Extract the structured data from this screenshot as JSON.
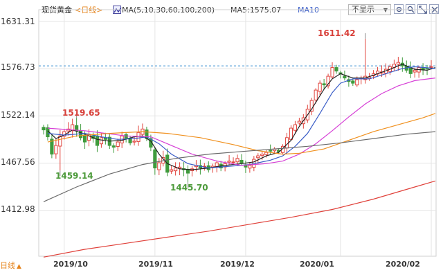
{
  "legend": {
    "title": "现货黄金",
    "period": "<日线>",
    "ma_list": "MA(5,10,30,60,100,200)",
    "ma5": "MA5:1575.07",
    "ma10": "MA10"
  },
  "toolbar": {
    "hide_label": "不显示",
    "caret": "▼"
  },
  "footer": {
    "period": "日线",
    "caret": "▲"
  },
  "colors": {
    "up": "#e0413a",
    "down": "#3e9b3c",
    "ma5": "#222222",
    "ma10": "#3a5dc7",
    "ma30": "#d63fd6",
    "ma60": "#f0901e",
    "ma100": "#6a6a6a",
    "ma200": "#e0413a",
    "dashed": "#3a8fd0",
    "grid": "#e4e4e4"
  },
  "chart_data": {
    "type": "candlestick",
    "y_ticks": [
      1631.31,
      1576.73,
      1522.14,
      1467.56,
      1412.98
    ],
    "ylim": [
      1358.4,
      1631.31
    ],
    "x_ticks": [
      "2019/10",
      "2019/11",
      "2019/12",
      "2020/01",
      "2020/02"
    ],
    "x_tick_index": [
      5,
      27,
      49,
      72,
      94
    ],
    "reference_price": 1580,
    "annotations": [
      {
        "label": "1519.65",
        "value": 1519.65,
        "index": 8,
        "kind": "high"
      },
      {
        "label": "1459.14",
        "value": 1459.14,
        "index": 4,
        "kind": "low"
      },
      {
        "label": "1445.70",
        "value": 1445.7,
        "index": 35,
        "kind": "low"
      },
      {
        "label": "1611.42",
        "value": 1611.42,
        "index": 78,
        "kind": "high"
      }
    ],
    "closes": [
      1506,
      1498,
      1478,
      1488,
      1499,
      1504,
      1507,
      1512,
      1505,
      1497,
      1492,
      1501,
      1496,
      1488,
      1497,
      1495,
      1488,
      1486,
      1492,
      1499,
      1496,
      1491,
      1493,
      1503,
      1507,
      1496,
      1486,
      1462,
      1468,
      1474,
      1457,
      1460,
      1462,
      1463,
      1460,
      1456,
      1461,
      1465,
      1462,
      1464,
      1460,
      1464,
      1468,
      1462,
      1467,
      1470,
      1469,
      1473,
      1468,
      1463,
      1465,
      1472,
      1476,
      1478,
      1480,
      1482,
      1484,
      1481,
      1487,
      1497,
      1508,
      1512,
      1516,
      1520,
      1530,
      1540,
      1552,
      1560,
      1558,
      1568,
      1578,
      1574,
      1571,
      1566,
      1562,
      1560,
      1564,
      1566,
      1568,
      1567,
      1571,
      1574,
      1573,
      1576,
      1579,
      1582,
      1584,
      1580,
      1575,
      1571,
      1575,
      1578,
      1576,
      1577,
      1579
    ],
    "ma_lines": [
      {
        "name": "MA5",
        "values": [
          [
            1,
            1505
          ],
          [
            3,
            1496
          ],
          [
            5,
            1500
          ],
          [
            7,
            1506
          ],
          [
            10,
            1501
          ],
          [
            13,
            1495
          ],
          [
            16,
            1493
          ],
          [
            19,
            1494
          ],
          [
            22,
            1498
          ],
          [
            24,
            1499
          ],
          [
            26,
            1493
          ],
          [
            28,
            1478
          ],
          [
            30,
            1467
          ],
          [
            33,
            1461
          ],
          [
            36,
            1460
          ],
          [
            40,
            1462
          ],
          [
            44,
            1465
          ],
          [
            48,
            1467
          ],
          [
            51,
            1469
          ],
          [
            54,
            1476
          ],
          [
            57,
            1480
          ],
          [
            60,
            1494
          ],
          [
            62,
            1510
          ],
          [
            65,
            1530
          ],
          [
            68,
            1553
          ],
          [
            70,
            1565
          ],
          [
            72,
            1571
          ],
          [
            75,
            1566
          ],
          [
            78,
            1566
          ],
          [
            81,
            1571
          ],
          [
            84,
            1576
          ],
          [
            87,
            1582
          ],
          [
            90,
            1576
          ],
          [
            93,
            1575
          ],
          [
            95,
            1578
          ]
        ]
      },
      {
        "name": "MA10",
        "values": [
          [
            1,
            1502
          ],
          [
            5,
            1500
          ],
          [
            10,
            1502
          ],
          [
            14,
            1498
          ],
          [
            18,
            1495
          ],
          [
            22,
            1496
          ],
          [
            25,
            1498
          ],
          [
            28,
            1490
          ],
          [
            31,
            1478
          ],
          [
            35,
            1467
          ],
          [
            40,
            1462
          ],
          [
            45,
            1464
          ],
          [
            50,
            1466
          ],
          [
            55,
            1471
          ],
          [
            58,
            1476
          ],
          [
            61,
            1487
          ],
          [
            64,
            1502
          ],
          [
            67,
            1525
          ],
          [
            70,
            1549
          ],
          [
            72,
            1560
          ],
          [
            75,
            1565
          ],
          [
            79,
            1565
          ],
          [
            83,
            1571
          ],
          [
            87,
            1577
          ],
          [
            90,
            1579
          ],
          [
            95,
            1577
          ]
        ]
      },
      {
        "name": "MA30",
        "values": [
          [
            1,
            1508
          ],
          [
            10,
            1505
          ],
          [
            20,
            1499
          ],
          [
            26,
            1498
          ],
          [
            30,
            1490
          ],
          [
            36,
            1478
          ],
          [
            42,
            1470
          ],
          [
            48,
            1465
          ],
          [
            54,
            1467
          ],
          [
            58,
            1470
          ],
          [
            62,
            1478
          ],
          [
            66,
            1490
          ],
          [
            70,
            1505
          ],
          [
            74,
            1521
          ],
          [
            78,
            1536
          ],
          [
            82,
            1548
          ],
          [
            86,
            1557
          ],
          [
            90,
            1563
          ],
          [
            95,
            1566
          ]
        ]
      },
      {
        "name": "MA60",
        "values": [
          [
            1,
            1492
          ],
          [
            8,
            1499
          ],
          [
            16,
            1502
          ],
          [
            24,
            1504
          ],
          [
            30,
            1502
          ],
          [
            38,
            1497
          ],
          [
            46,
            1489
          ],
          [
            52,
            1482
          ],
          [
            58,
            1478
          ],
          [
            62,
            1479
          ],
          [
            68,
            1484
          ],
          [
            74,
            1494
          ],
          [
            80,
            1504
          ],
          [
            86,
            1512
          ],
          [
            92,
            1520
          ],
          [
            95,
            1525
          ]
        ]
      },
      {
        "name": "MA100",
        "values": [
          [
            0,
            1423
          ],
          [
            8,
            1440
          ],
          [
            16,
            1455
          ],
          [
            24,
            1466
          ],
          [
            32,
            1473
          ],
          [
            40,
            1478
          ],
          [
            48,
            1481
          ],
          [
            56,
            1484
          ],
          [
            64,
            1487
          ],
          [
            72,
            1491
          ],
          [
            80,
            1496
          ],
          [
            88,
            1501
          ],
          [
            95,
            1504
          ]
        ]
      },
      {
        "name": "MA200",
        "values": [
          [
            0,
            1359
          ],
          [
            10,
            1368
          ],
          [
            20,
            1375
          ],
          [
            30,
            1382
          ],
          [
            40,
            1389
          ],
          [
            50,
            1397
          ],
          [
            60,
            1405
          ],
          [
            70,
            1414
          ],
          [
            80,
            1426
          ],
          [
            90,
            1440
          ],
          [
            95,
            1447
          ]
        ]
      }
    ]
  }
}
